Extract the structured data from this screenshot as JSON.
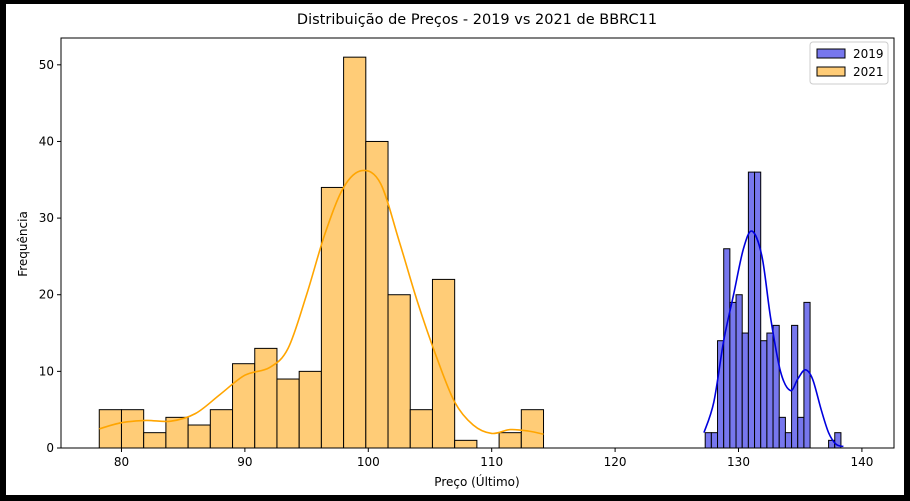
{
  "chart_data": {
    "type": "histogram",
    "title": "Distribuição de Preços - 2019 vs 2021 de BBRC11",
    "xlabel": "Preço (Último)",
    "ylabel": "Frequência",
    "xlim": [
      75.1,
      142.6
    ],
    "ylim": [
      0,
      53.5
    ],
    "xticks": [
      80,
      90,
      100,
      110,
      120,
      130,
      140
    ],
    "yticks": [
      0,
      10,
      20,
      30,
      40,
      50
    ],
    "grid": false,
    "legend_position": "top-right",
    "series": [
      {
        "name": "2019",
        "fill": "#7777ee",
        "line": "#0000dd",
        "bin_width": 0.5,
        "bins": [
          [
            127.3,
            2
          ],
          [
            127.8,
            2
          ],
          [
            128.3,
            14
          ],
          [
            128.8,
            26
          ],
          [
            129.3,
            19
          ],
          [
            129.8,
            20
          ],
          [
            130.3,
            15
          ],
          [
            130.8,
            36
          ],
          [
            131.3,
            36
          ],
          [
            131.8,
            14
          ],
          [
            132.3,
            15
          ],
          [
            132.8,
            16
          ],
          [
            133.3,
            4
          ],
          [
            133.8,
            2
          ],
          [
            134.3,
            16
          ],
          [
            134.8,
            4
          ],
          [
            135.3,
            19
          ],
          [
            135.8,
            0
          ],
          [
            136.3,
            0
          ],
          [
            136.8,
            0
          ],
          [
            137.3,
            1
          ],
          [
            137.8,
            2
          ]
        ],
        "kde": [
          [
            127.2,
            2
          ],
          [
            128,
            6
          ],
          [
            128.8,
            14
          ],
          [
            129.6,
            20
          ],
          [
            130.4,
            26
          ],
          [
            131.1,
            28.3
          ],
          [
            131.9,
            25
          ],
          [
            132.6,
            17
          ],
          [
            133.4,
            10
          ],
          [
            134.2,
            7.5
          ],
          [
            134.8,
            9
          ],
          [
            135.4,
            10.2
          ],
          [
            136,
            9
          ],
          [
            136.7,
            5
          ],
          [
            137.3,
            2
          ],
          [
            137.9,
            0.5
          ],
          [
            138.5,
            0.2
          ]
        ]
      },
      {
        "name": "2021",
        "fill": "#ffcc77",
        "line": "#ffa500",
        "bin_width": 1.8,
        "bins": [
          [
            78.2,
            5
          ],
          [
            80.0,
            5
          ],
          [
            81.8,
            2
          ],
          [
            83.6,
            4
          ],
          [
            85.4,
            3
          ],
          [
            87.2,
            5
          ],
          [
            89.0,
            11
          ],
          [
            90.8,
            13
          ],
          [
            92.6,
            9
          ],
          [
            94.4,
            10
          ],
          [
            96.2,
            34
          ],
          [
            98.0,
            51
          ],
          [
            99.8,
            40
          ],
          [
            101.6,
            20
          ],
          [
            103.4,
            5
          ],
          [
            105.2,
            22
          ],
          [
            107.0,
            1
          ],
          [
            108.8,
            0
          ],
          [
            110.6,
            2
          ],
          [
            112.4,
            5
          ]
        ],
        "kde": [
          [
            78.2,
            2.5
          ],
          [
            80,
            3.3
          ],
          [
            82,
            3.6
          ],
          [
            84,
            3.5
          ],
          [
            86,
            4.5
          ],
          [
            88,
            7
          ],
          [
            90,
            9.5
          ],
          [
            92,
            10.5
          ],
          [
            93.5,
            13
          ],
          [
            95,
            20
          ],
          [
            96.5,
            28
          ],
          [
            98,
            34
          ],
          [
            99.5,
            36.2
          ],
          [
            101,
            34.5
          ],
          [
            102.5,
            27
          ],
          [
            104,
            19
          ],
          [
            105.5,
            12
          ],
          [
            107,
            6
          ],
          [
            108.5,
            3
          ],
          [
            110,
            1.9
          ],
          [
            111.5,
            2.4
          ],
          [
            113,
            2.2
          ],
          [
            114.2,
            1.8
          ]
        ]
      }
    ]
  }
}
